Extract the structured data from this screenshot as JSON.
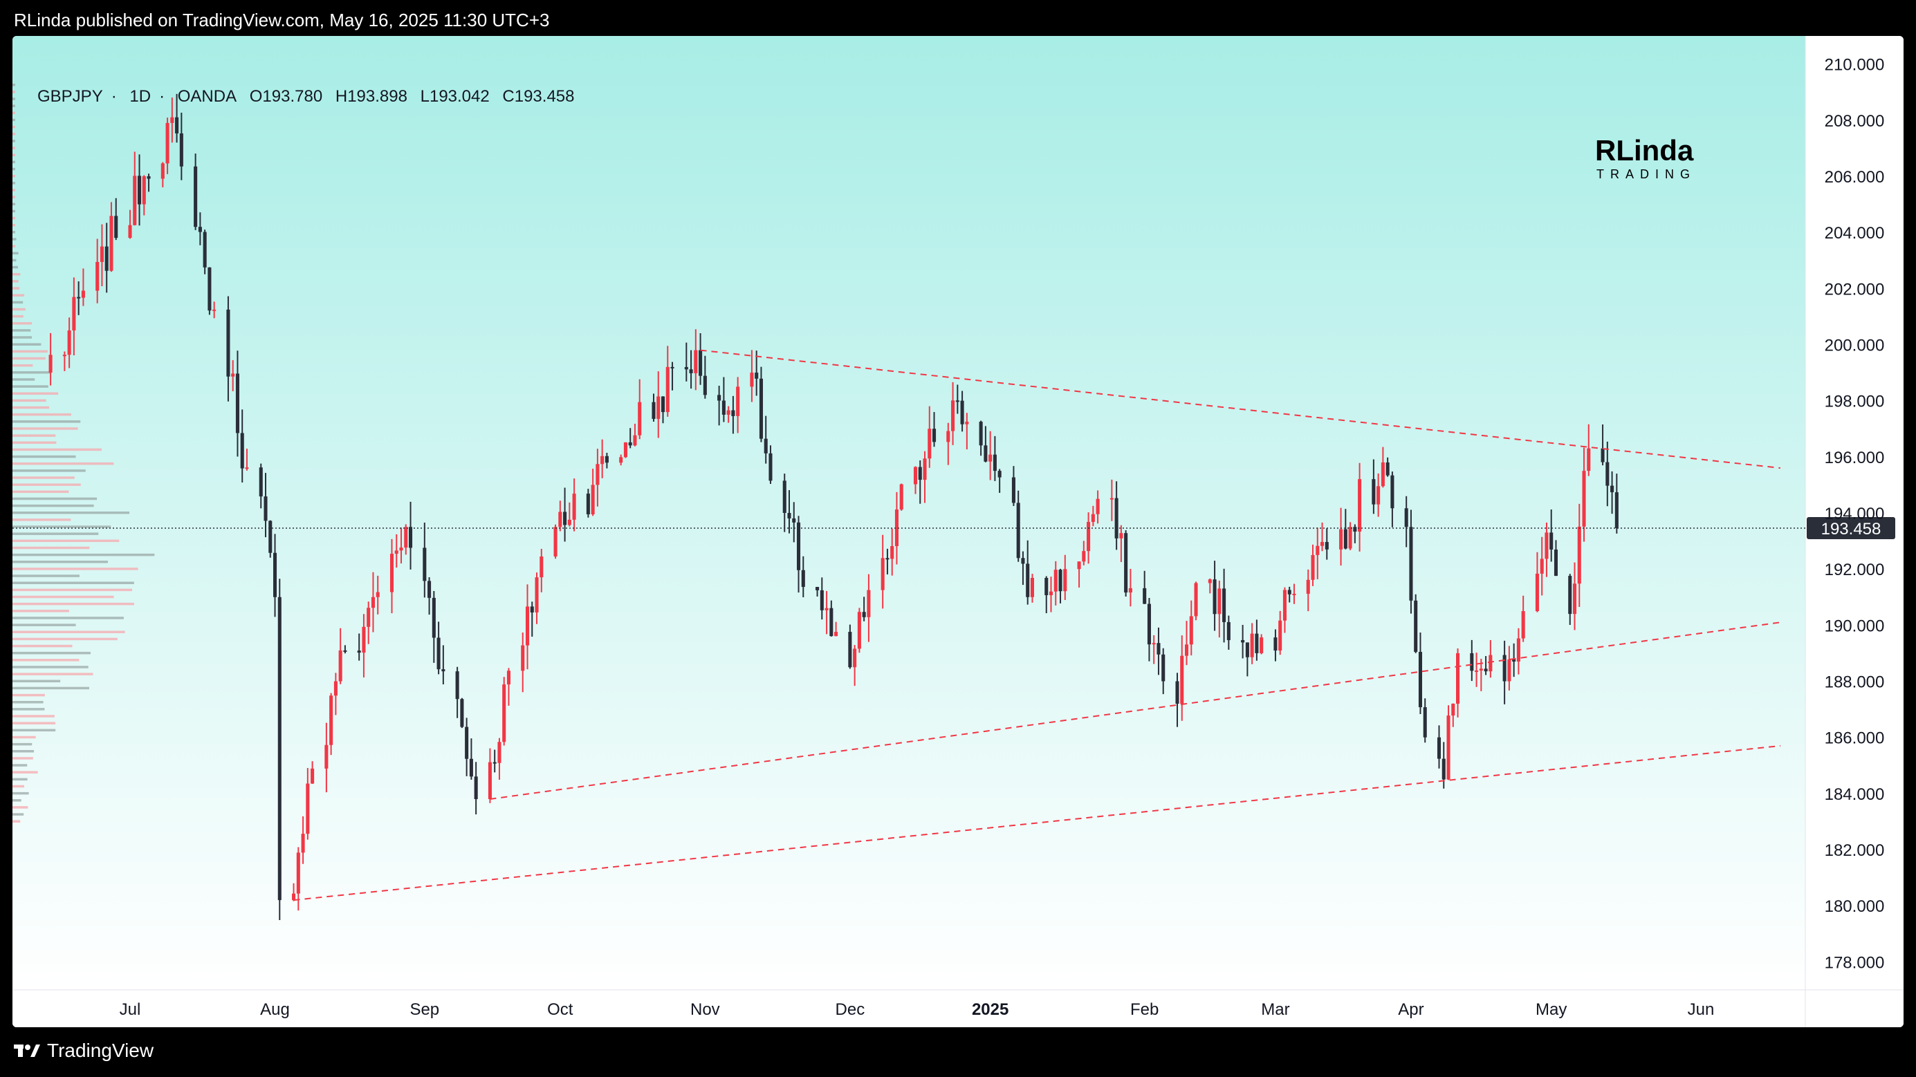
{
  "header": {
    "published_text": "RLinda published on TradingView.com, May 16, 2025 11:30 UTC+3"
  },
  "footer": {
    "brand": "TradingView",
    "brand_icon": "tradingview-logo-icon"
  },
  "symbol": {
    "name": "GBPJPY",
    "interval": "1D",
    "broker": "OANDA",
    "separator": "·",
    "open": "O193.780",
    "high": "H193.898",
    "low": "L193.042",
    "close": "C193.458"
  },
  "logo": {
    "line1": "RLinda",
    "line2": "TRADING"
  },
  "colors": {
    "background_top": "#a8ede6",
    "background_bottom": "#ffffff",
    "up": "#f23645",
    "down": "#2a2e39",
    "trendline": "#f23645",
    "price_label_bg": "#2a2e39",
    "volume_up": "#f7a8ae",
    "volume_down": "#9aa8a6"
  },
  "chart_data": {
    "type": "candlestick",
    "y_axis": {
      "min": 177,
      "max": 211,
      "position": "right",
      "ticks": [
        "178.000",
        "180.000",
        "182.000",
        "184.000",
        "186.000",
        "188.000",
        "190.000",
        "192.000",
        "194.000",
        "196.000",
        "198.000",
        "200.000",
        "202.000",
        "204.000",
        "206.000",
        "208.000",
        "210.000"
      ]
    },
    "x_axis": {
      "labels": [
        "Jul",
        "Aug",
        "Sep",
        "Oct",
        "Nov",
        "Dec",
        "2025",
        "Feb",
        "Mar",
        "Apr",
        "May",
        "Jun"
      ],
      "label_dates": [
        "2024-07-01",
        "2024-08-01",
        "2024-09-02",
        "2024-10-01",
        "2024-11-01",
        "2024-12-02",
        "2025-01-01",
        "2025-02-03",
        "2025-03-03",
        "2025-04-01",
        "2025-05-01",
        "2025-06-02"
      ]
    },
    "last_price": 193.458,
    "last_price_label": "193.458",
    "pivots": [
      {
        "date": "2024-06-14",
        "price": 199.0
      },
      {
        "date": "2024-07-11",
        "price": 208.1
      },
      {
        "date": "2024-08-02",
        "price": 191.0
      },
      {
        "date": "2024-08-05",
        "price": 180.2
      },
      {
        "date": "2024-08-15",
        "price": 188.0
      },
      {
        "date": "2024-08-23",
        "price": 191.0
      },
      {
        "date": "2024-08-30",
        "price": 193.5
      },
      {
        "date": "2024-09-16",
        "price": 183.8
      },
      {
        "date": "2024-10-01",
        "price": 193.5
      },
      {
        "date": "2024-10-09",
        "price": 195.0
      },
      {
        "date": "2024-10-31",
        "price": 199.8
      },
      {
        "date": "2024-11-06",
        "price": 197.5
      },
      {
        "date": "2024-11-12",
        "price": 199.0
      },
      {
        "date": "2024-11-19",
        "price": 194.0
      },
      {
        "date": "2024-12-03",
        "price": 188.5
      },
      {
        "date": "2024-12-20",
        "price": 197.0
      },
      {
        "date": "2024-12-26",
        "price": 198.0
      },
      {
        "date": "2025-01-03",
        "price": 195.5
      },
      {
        "date": "2025-01-10",
        "price": 191.0
      },
      {
        "date": "2025-01-20",
        "price": 192.0
      },
      {
        "date": "2025-01-27",
        "price": 194.5
      },
      {
        "date": "2025-02-11",
        "price": 187.2
      },
      {
        "date": "2025-02-17",
        "price": 191.5
      },
      {
        "date": "2025-02-28",
        "price": 189.0
      },
      {
        "date": "2025-03-12",
        "price": 192.5
      },
      {
        "date": "2025-03-20",
        "price": 193.5
      },
      {
        "date": "2025-03-27",
        "price": 195.8
      },
      {
        "date": "2025-04-01",
        "price": 193.5
      },
      {
        "date": "2025-04-07",
        "price": 186.0
      },
      {
        "date": "2025-04-09",
        "price": 184.5
      },
      {
        "date": "2025-04-14",
        "price": 189.0
      },
      {
        "date": "2025-04-22",
        "price": 188.0
      },
      {
        "date": "2025-04-28",
        "price": 190.5
      },
      {
        "date": "2025-05-01",
        "price": 193.3
      },
      {
        "date": "2025-05-06",
        "price": 190.4
      },
      {
        "date": "2025-05-09",
        "price": 195.5
      },
      {
        "date": "2025-05-12",
        "price": 196.3
      },
      {
        "date": "2025-05-16",
        "price": 193.458
      }
    ],
    "trendlines": [
      {
        "name": "upper-resistance",
        "style": "dashed",
        "from": {
          "date": "2024-10-31",
          "price": 199.8
        },
        "to": {
          "date": "2025-06-19",
          "price": 195.6
        }
      },
      {
        "name": "middle-support",
        "style": "dashed",
        "from": {
          "date": "2024-09-16",
          "price": 183.8
        },
        "to": {
          "date": "2025-06-19",
          "price": 190.1
        }
      },
      {
        "name": "lower-support",
        "style": "dashed",
        "from": {
          "date": "2024-08-05",
          "price": 180.2
        },
        "to": {
          "date": "2025-06-19",
          "price": 185.7
        }
      }
    ],
    "volume_profile": {
      "position": "left",
      "price_range": [
        183.0,
        209.5
      ]
    }
  }
}
